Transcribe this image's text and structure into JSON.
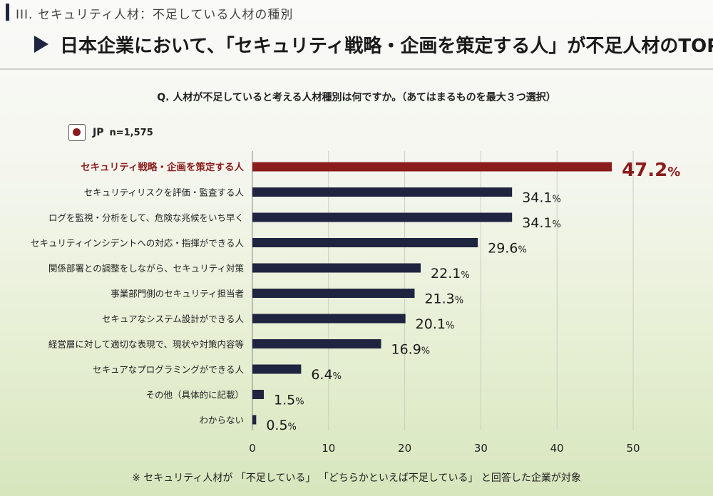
{
  "section_label": "III. セキュリティ人材：不足している人材の種別",
  "headline": "日本企業において、「セキュリティ戦略・企画を策定する人」が不足人材のTOP",
  "question": "Q. 人材が不足していると考える人材種別は何ですか。（あてはまるものを最大３つ選択）",
  "legend": {
    "label": "JP",
    "n": "n=1,575"
  },
  "footnote": "※ セキュリティ人材が 「不足している」 「どちらかといえば不足している」 と回答した企業が対象",
  "colors": {
    "highlight": "#8b1c1c",
    "bar": "#1f2440",
    "grid": "#c9cdc4"
  },
  "chart_data": {
    "type": "bar",
    "orientation": "horizontal",
    "categories": [
      "セキュリティ戦略・企画を策定する人",
      "セキュリティリスクを評価・監査する人",
      "ログを監視・分析をして、危険な兆候をいち早く",
      "セキュリティインシデントへの対応・指揮ができる人",
      "関係部署との調整をしながら、セキュリティ対策",
      "事業部門側のセキュリティ担当者",
      "セキュアなシステム設計ができる人",
      "経営層に対して適切な表現で、現状や対策内容等",
      "セキュアなプログラミングができる人",
      "その他（具体的に記載）",
      "わからない"
    ],
    "values": [
      47.2,
      34.1,
      34.1,
      29.6,
      22.1,
      21.3,
      20.1,
      16.9,
      6.4,
      1.5,
      0.5
    ],
    "value_labels": [
      "47.2",
      "34.1",
      "34.1",
      "29.6",
      "22.1",
      "21.3",
      "20.1",
      "16.9",
      "6.4",
      "1.5",
      "0.5"
    ],
    "unit": "%",
    "highlight_index": 0,
    "xlim": [
      0,
      50
    ],
    "xticks": [
      0,
      10,
      20,
      30,
      40,
      50
    ],
    "grid": true
  }
}
